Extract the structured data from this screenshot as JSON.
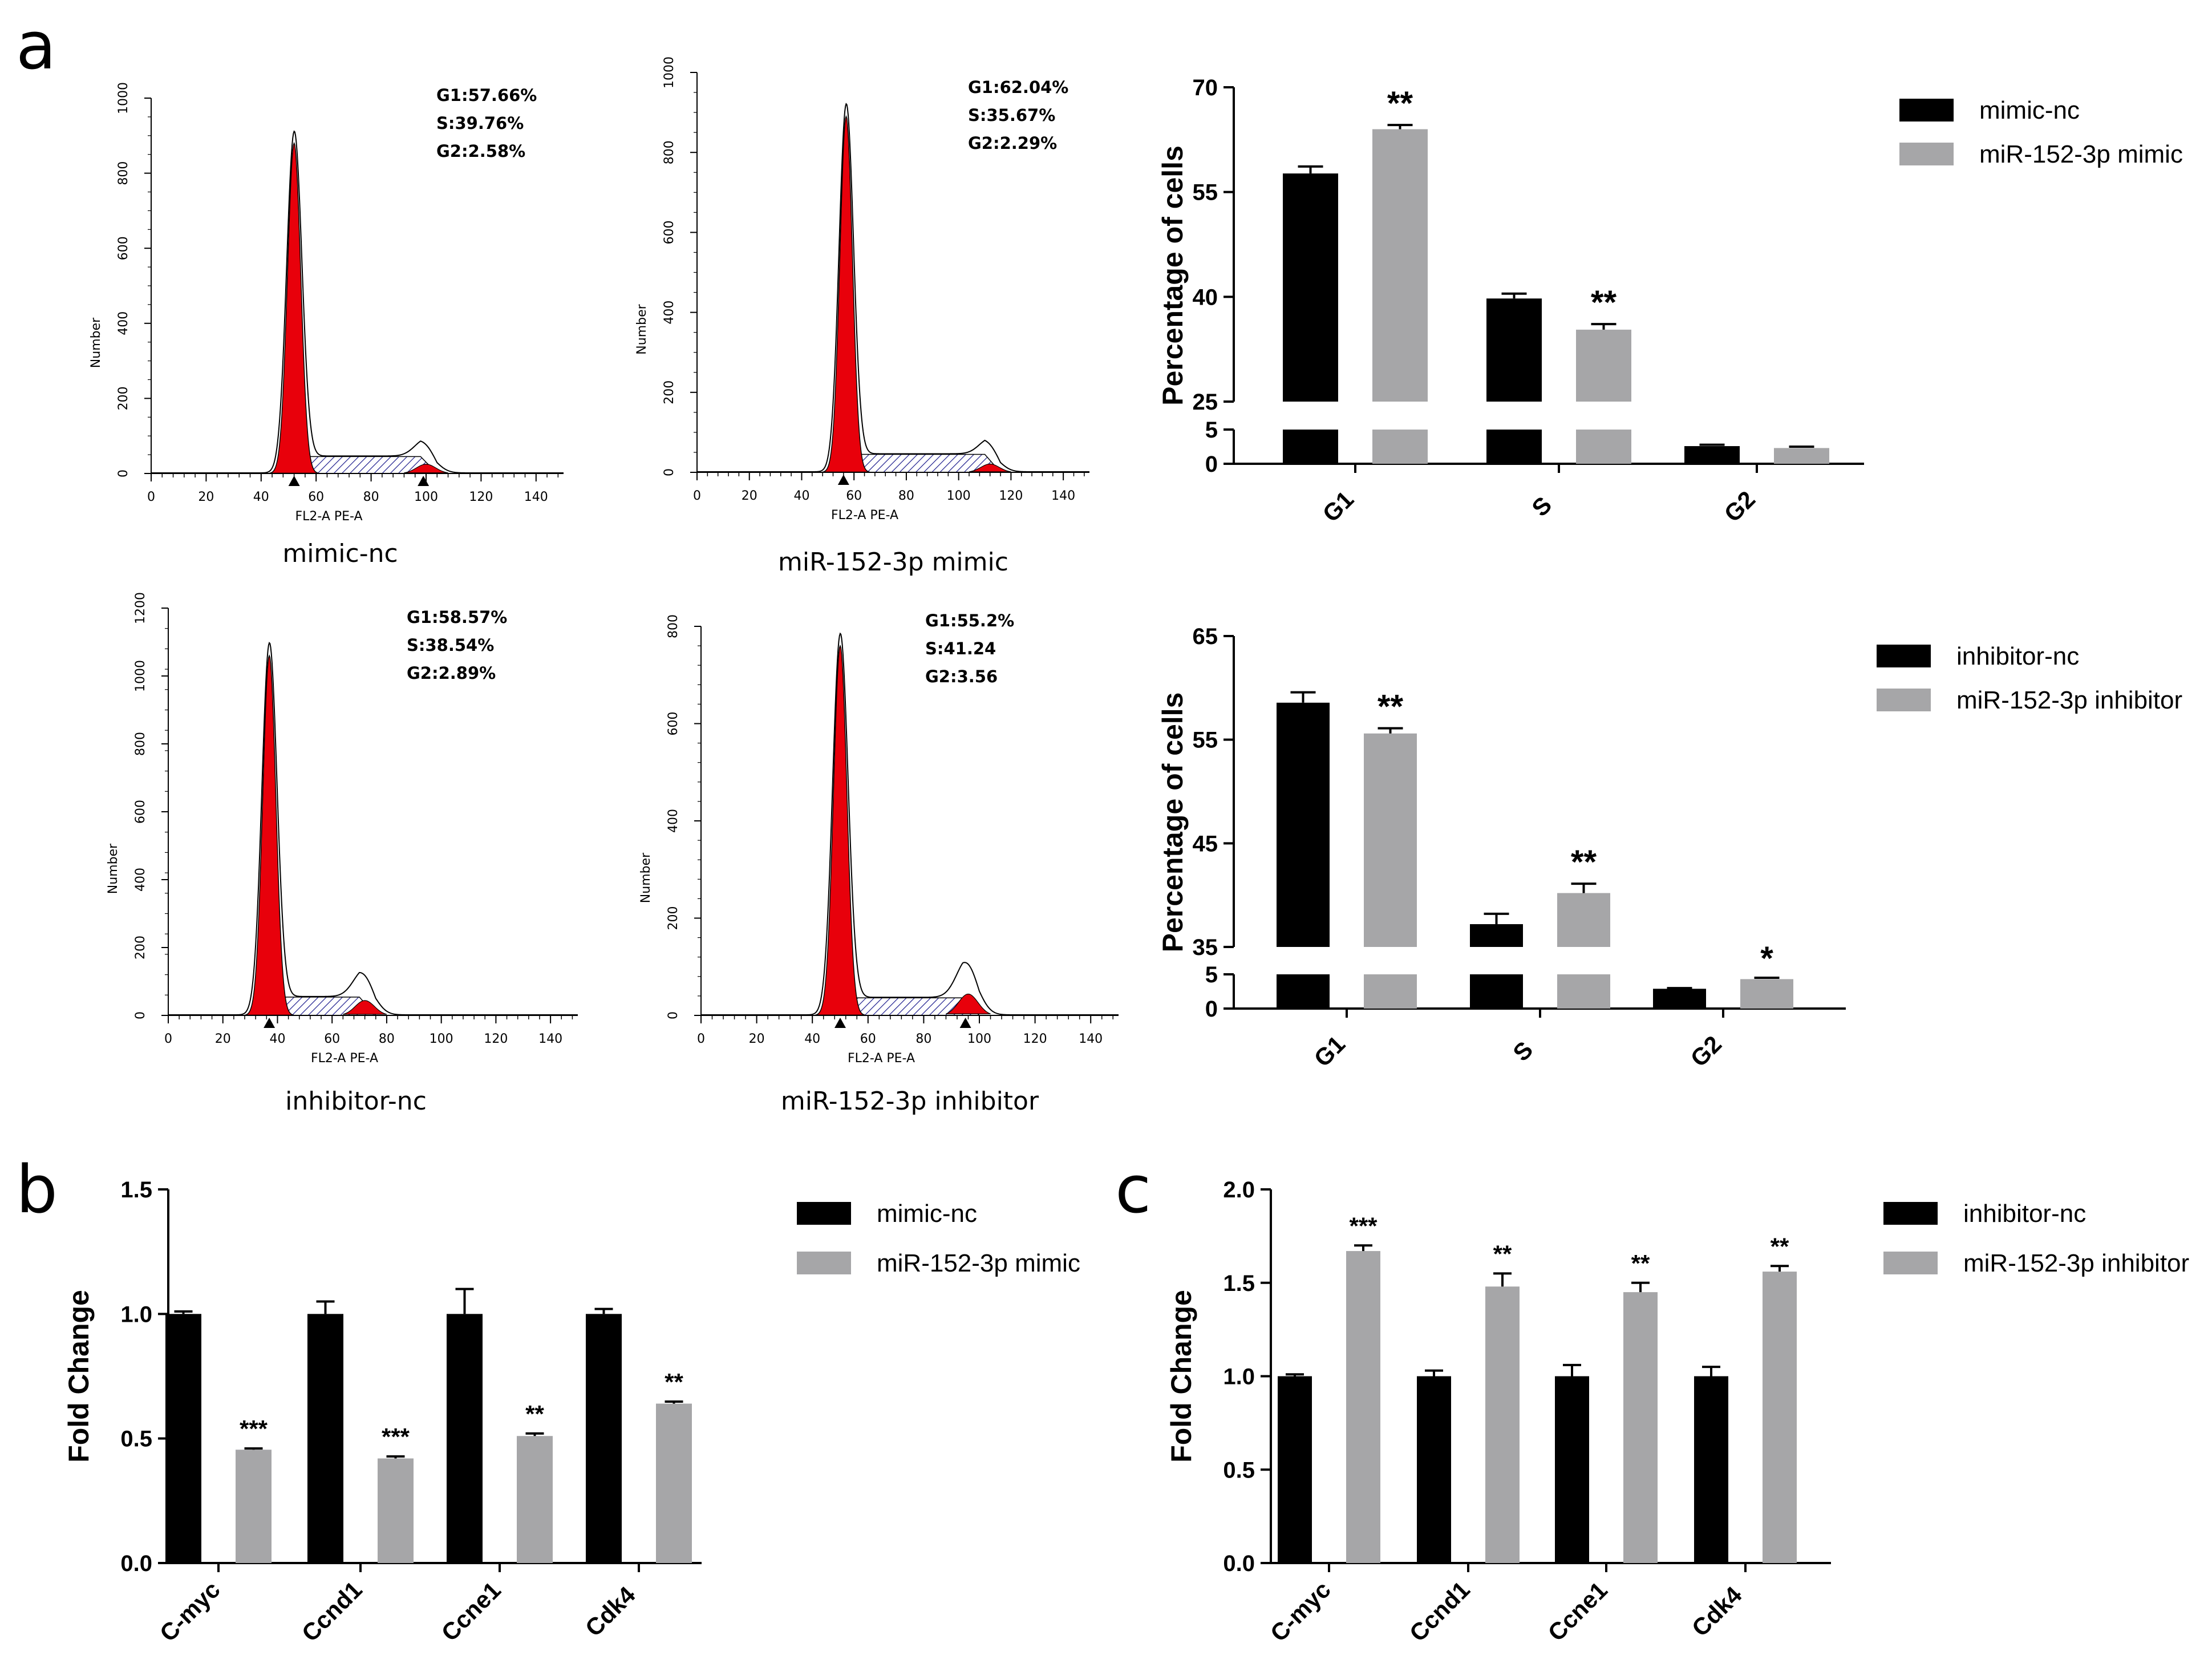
{
  "panel_labels": {
    "a": "a",
    "b": "b",
    "c": "c"
  },
  "colors": {
    "black_bar": "#000000",
    "gray_bar": "#a6a6a8",
    "peak": "#e8000b",
    "hatch": "#1a1a8c"
  },
  "chart_data": [
    {
      "type": "histogram",
      "id": "flow-mimic-nc",
      "caption": "mimic-nc",
      "xlabel": "FL2-A PE-A",
      "ylabel": "Number",
      "xlim": [
        0,
        150
      ],
      "ylim": [
        0,
        1000
      ],
      "xticks": [
        "0",
        "20",
        "40",
        "60",
        "80",
        "100",
        "120",
        "140"
      ],
      "yticks": [
        "0",
        "200",
        "400",
        "600",
        "800",
        "1000"
      ],
      "stats": [
        "G1:57.66%",
        "S:39.76%",
        "G2:2.58%"
      ],
      "g1_peak_position": 52,
      "g1_peak_height": 880,
      "g2_peak_position": 100,
      "g2_peak_height": 45,
      "markers": [
        52,
        99
      ]
    },
    {
      "type": "histogram",
      "id": "flow-mimic",
      "caption": "miR-152-3p mimic",
      "xlabel": "FL2-A PE-A",
      "ylabel": "Number",
      "xlim": [
        0,
        150
      ],
      "ylim": [
        0,
        1000
      ],
      "xticks": [
        "0",
        "20",
        "40",
        "60",
        "80",
        "100",
        "120",
        "140"
      ],
      "yticks": [
        "0",
        "200",
        "400",
        "600",
        "800",
        "1000"
      ],
      "stats": [
        "G1:62.04%",
        "S:35.67%",
        "G2:2.29%"
      ],
      "g1_peak_position": 57,
      "g1_peak_height": 890,
      "g2_peak_position": 112,
      "g2_peak_height": 38,
      "markers": [
        56
      ]
    },
    {
      "type": "histogram",
      "id": "flow-inhibitor-nc",
      "caption": "inhibitor-nc",
      "xlabel": "FL2-A PE-A",
      "ylabel": "Number",
      "xlim": [
        0,
        150
      ],
      "ylim": [
        0,
        1200
      ],
      "xticks": [
        "0",
        "20",
        "40",
        "60",
        "80",
        "100",
        "120",
        "140"
      ],
      "yticks": [
        "0",
        "200",
        "400",
        "600",
        "800",
        "1000",
        "1200"
      ],
      "stats": [
        "G1:58.57%",
        "S:38.54%",
        "G2:2.89%"
      ],
      "g1_peak_position": 37,
      "g1_peak_height": 1060,
      "g2_peak_position": 72,
      "g2_peak_height": 80,
      "markers": [
        37
      ]
    },
    {
      "type": "histogram",
      "id": "flow-inhibitor",
      "caption": "miR-152-3p inhibitor",
      "xlabel": "FL2-A PE-A",
      "ylabel": "Number",
      "xlim": [
        0,
        150
      ],
      "ylim": [
        0,
        800
      ],
      "xticks": [
        "0",
        "20",
        "40",
        "60",
        "80",
        "100",
        "120",
        "140"
      ],
      "yticks": [
        "0",
        "200",
        "400",
        "600",
        "800"
      ],
      "stats": [
        "G1:55.2%",
        "S:41.24",
        "G2:3.56"
      ],
      "g1_peak_position": 50,
      "g1_peak_height": 760,
      "g2_peak_position": 96,
      "g2_peak_height": 80,
      "markers": [
        50,
        95
      ]
    },
    {
      "type": "bar",
      "id": "cellcycle-mimic",
      "ylabel": "Percentage of cells",
      "categories": [
        "G1",
        "S",
        "G2"
      ],
      "broken_axis": {
        "lower": [
          0,
          5
        ],
        "upper": [
          25,
          70
        ]
      },
      "yticks_lower": [
        "0",
        "5"
      ],
      "yticks_upper": [
        "25",
        "40",
        "55",
        "70"
      ],
      "series": [
        {
          "name": "mimic-nc",
          "values": [
            57.66,
            39.76,
            2.58
          ],
          "errors": [
            1.0,
            0.7,
            0.2
          ]
        },
        {
          "name": "miR-152-3p mimic",
          "values": [
            64.0,
            35.3,
            2.3
          ],
          "errors": [
            0.6,
            0.8,
            0.2
          ]
        }
      ],
      "significance": [
        [
          "",
          "**"
        ],
        [
          "",
          "**"
        ],
        [
          "",
          ""
        ]
      ]
    },
    {
      "type": "bar",
      "id": "cellcycle-inhibitor",
      "ylabel": "Percentage of cells",
      "categories": [
        "G1",
        "S",
        "G2"
      ],
      "broken_axis": {
        "lower": [
          0,
          5
        ],
        "upper": [
          35,
          65
        ]
      },
      "yticks_lower": [
        "0",
        "5"
      ],
      "yticks_upper": [
        "35",
        "45",
        "55",
        "65"
      ],
      "series": [
        {
          "name": "inhibitor-nc",
          "values": [
            58.57,
            37.2,
            2.89
          ],
          "errors": [
            1.0,
            1.0,
            0.1
          ]
        },
        {
          "name": "miR-152-3p inhibitor",
          "values": [
            55.6,
            40.2,
            4.3
          ],
          "errors": [
            0.5,
            0.9,
            0.2
          ]
        }
      ],
      "significance": [
        [
          "",
          "**"
        ],
        [
          "",
          "**"
        ],
        [
          "",
          "*"
        ]
      ]
    },
    {
      "type": "bar",
      "id": "fold-mimic",
      "ylabel": "Fold Change",
      "ylim": [
        0,
        1.5
      ],
      "yticks": [
        "0.0",
        "0.5",
        "1.0",
        "1.5"
      ],
      "categories": [
        "C-myc",
        "Ccnd1",
        "Ccne1",
        "Cdk4"
      ],
      "series": [
        {
          "name": "mimic-nc",
          "values": [
            1.0,
            1.0,
            1.0,
            1.0
          ],
          "errors": [
            0.01,
            0.05,
            0.1,
            0.02
          ]
        },
        {
          "name": "miR-152-3p mimic",
          "values": [
            0.455,
            0.42,
            0.51,
            0.64
          ],
          "errors": [
            0.005,
            0.008,
            0.01,
            0.008
          ]
        }
      ],
      "significance": [
        [
          "",
          "***"
        ],
        [
          "",
          "***"
        ],
        [
          "",
          "**"
        ],
        [
          "",
          "**"
        ]
      ]
    },
    {
      "type": "bar",
      "id": "fold-inhibitor",
      "ylabel": "Fold Change",
      "ylim": [
        0,
        2.0
      ],
      "yticks": [
        "0.0",
        "0.5",
        "1.0",
        "1.5",
        "2.0"
      ],
      "categories": [
        "C-myc",
        "Ccnd1",
        "Ccne1",
        "Cdk4"
      ],
      "series": [
        {
          "name": "inhibitor-nc",
          "values": [
            1.0,
            1.0,
            1.0,
            1.0
          ],
          "errors": [
            0.01,
            0.03,
            0.06,
            0.05
          ]
        },
        {
          "name": "miR-152-3p inhibitor",
          "values": [
            1.67,
            1.48,
            1.45,
            1.56
          ],
          "errors": [
            0.03,
            0.07,
            0.05,
            0.03
          ]
        }
      ],
      "significance": [
        [
          "",
          "***"
        ],
        [
          "",
          "**"
        ],
        [
          "",
          "**"
        ],
        [
          "",
          "**"
        ]
      ]
    }
  ]
}
